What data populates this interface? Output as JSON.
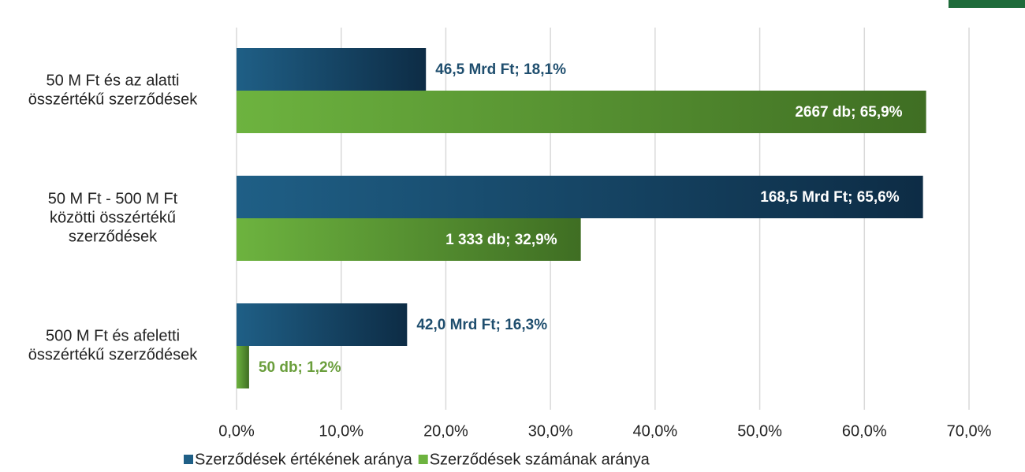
{
  "chart_data": {
    "type": "bar",
    "orientation": "horizontal",
    "categories": [
      [
        "50 M Ft és az alatti",
        "összértékű szerződések"
      ],
      [
        "50 M Ft - 500 M Ft",
        "közötti összértékű",
        "szerződések"
      ],
      [
        "500 M Ft  és afeletti",
        "összértékű szerződések"
      ]
    ],
    "series": [
      {
        "name": "Szerződések értékének aránya",
        "color": "#1f5f86",
        "values": [
          18.1,
          65.6,
          16.3
        ],
        "value_labels": [
          "46,5 Mrd Ft; 18,1%",
          "168,5 Mrd Ft;  65,6%",
          "42,0 Mrd Ft; 16,3%"
        ]
      },
      {
        "name": "Szerződések számának aránya",
        "color": "#6db33f",
        "values": [
          65.9,
          32.9,
          1.2
        ],
        "value_labels": [
          "2667 db; 65,9%",
          "1 333 db; 32,9%",
          "50 db; 1,2%"
        ]
      }
    ],
    "xlim": [
      0,
      70
    ],
    "xticks": [
      {
        "value": 0,
        "label": "0,0%"
      },
      {
        "value": 10,
        "label": "10,0%"
      },
      {
        "value": 20,
        "label": "20,0%"
      },
      {
        "value": 30,
        "label": "30,0%"
      },
      {
        "value": 40,
        "label": "40,0%"
      },
      {
        "value": 50,
        "label": "50,0%"
      },
      {
        "value": 60,
        "label": "60,0%"
      },
      {
        "value": 70,
        "label": "70,0%"
      }
    ],
    "grid": true,
    "legend": "bottom"
  }
}
